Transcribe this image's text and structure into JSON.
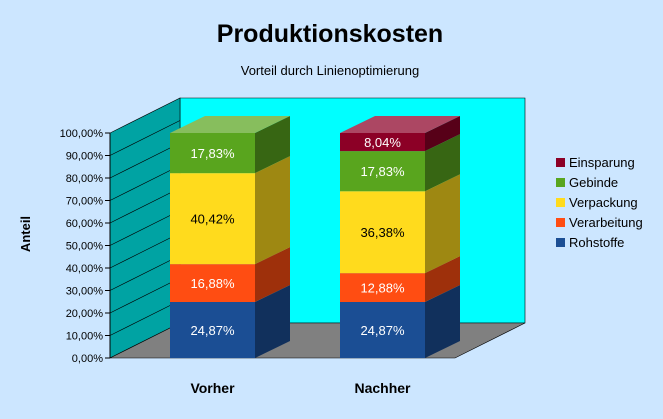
{
  "chart_data": {
    "type": "bar",
    "stacked": true,
    "three_d": true,
    "title": "Produktionskosten",
    "subtitle": "Vorteil durch Linienoptimierung",
    "ylabel": "Anteil",
    "xlabel": "",
    "ylim": [
      0,
      100
    ],
    "y_ticks": [
      "0,00%",
      "10,00%",
      "20,00%",
      "30,00%",
      "40,00%",
      "50,00%",
      "60,00%",
      "70,00%",
      "80,00%",
      "90,00%",
      "100,00%"
    ],
    "categories": [
      "Vorher",
      "Nachher"
    ],
    "series": [
      {
        "name": "Rohstoffe",
        "values": [
          24.87,
          24.87
        ],
        "labels": [
          "24,87%",
          "24,87%"
        ],
        "color": "#1b4e94"
      },
      {
        "name": "Verarbeitung",
        "values": [
          16.88,
          12.88
        ],
        "labels": [
          "16,88%",
          "12,88%"
        ],
        "color": "#ff4d12"
      },
      {
        "name": "Verpackung",
        "values": [
          40.42,
          36.38
        ],
        "labels": [
          "40,42%",
          "36,38%"
        ],
        "color": "#ffdb1d"
      },
      {
        "name": "Gebinde",
        "values": [
          17.83,
          17.83
        ],
        "labels": [
          "17,83%",
          "17,83%"
        ],
        "color": "#59a51e"
      },
      {
        "name": "Einsparung",
        "values": [
          0,
          8.04
        ],
        "labels": [
          "",
          "8,04%"
        ],
        "color": "#8c0026"
      }
    ],
    "legend_order": [
      "Einsparung",
      "Gebinde",
      "Verpackung",
      "Verarbeitung",
      "Rohstoffe"
    ],
    "legend_position": "right",
    "background_color": "#cce6ff",
    "wall_color": "#00ffff",
    "floor_color": "#808080"
  }
}
